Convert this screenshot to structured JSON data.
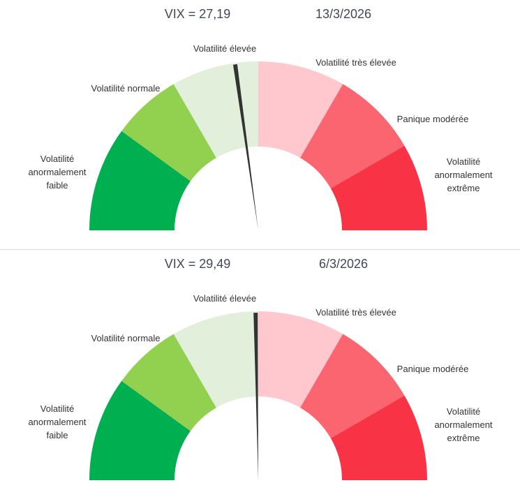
{
  "chart_data": [
    {
      "type": "gauge",
      "title": "VIX = 27,19",
      "date": "13/3/2026",
      "needle_fraction": 0.456,
      "segments": [
        {
          "label": "Volatilité anormalement faible",
          "lines": [
            "Volatilité",
            "anormalement",
            "faible"
          ],
          "end_fraction": 0.2,
          "color": "#00B050"
        },
        {
          "label": "Volatilité normale",
          "lines": [
            "Volatilité normale"
          ],
          "end_fraction": 0.333,
          "color": "#92D050"
        },
        {
          "label": "Volatilité élevée",
          "lines": [
            "Volatilité élevée"
          ],
          "end_fraction": 0.5,
          "color": "#E2EFDA"
        },
        {
          "label": "Volatilité très élevée",
          "lines": [
            "Volatilité très élevée"
          ],
          "end_fraction": 0.667,
          "color": "#FFC7CE"
        },
        {
          "label": "Panique modérée",
          "lines": [
            "Panique modérée"
          ],
          "end_fraction": 0.833,
          "color": "#FA6570"
        },
        {
          "label": "Volatilité anormalement extrême",
          "lines": [
            "Volatilité",
            "anormalement",
            "extrême"
          ],
          "end_fraction": 1.0,
          "color": "#F93346"
        }
      ],
      "needle_color": "#333333"
    },
    {
      "type": "gauge",
      "title": "VIX = 29,49",
      "date": "6/3/2026",
      "needle_fraction": 0.495,
      "segments": [
        {
          "label": "Volatilité anormalement faible",
          "lines": [
            "Volatilité",
            "anormalement",
            "faible"
          ],
          "end_fraction": 0.2,
          "color": "#00B050"
        },
        {
          "label": "Volatilité normale",
          "lines": [
            "Volatilité normale"
          ],
          "end_fraction": 0.333,
          "color": "#92D050"
        },
        {
          "label": "Volatilité élevée",
          "lines": [
            "Volatilité élevée"
          ],
          "end_fraction": 0.5,
          "color": "#E2EFDA"
        },
        {
          "label": "Volatilité très élevée",
          "lines": [
            "Volatilité très élevée"
          ],
          "end_fraction": 0.667,
          "color": "#FFC7CE"
        },
        {
          "label": "Panique modérée",
          "lines": [
            "Panique modérée"
          ],
          "end_fraction": 0.833,
          "color": "#FA6570"
        },
        {
          "label": "Volatilité anormalement extrême",
          "lines": [
            "Volatilité",
            "anormalement",
            "extrême"
          ],
          "end_fraction": 1.0,
          "color": "#F93346"
        }
      ],
      "needle_color": "#333333"
    }
  ]
}
